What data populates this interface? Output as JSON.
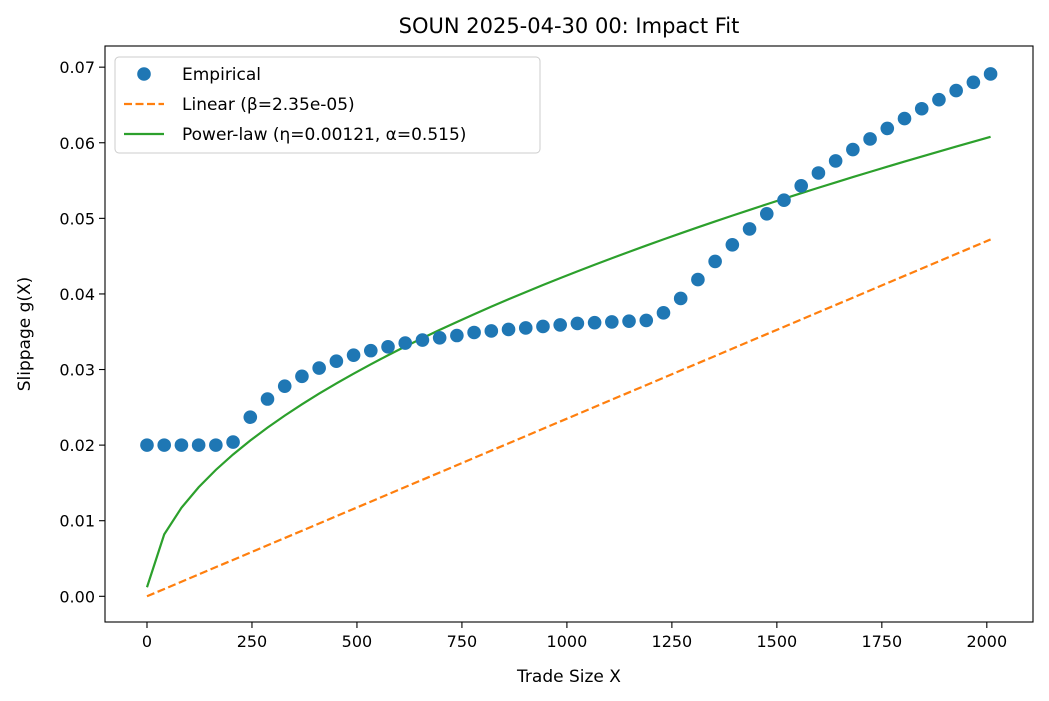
{
  "chart_data": {
    "type": "line",
    "title": "SOUN 2025-04-30 00: Impact Fit",
    "xlabel": "Trade Size X",
    "ylabel": "Slippage g(X)",
    "xlim": [
      -100,
      2110
    ],
    "ylim": [
      -0.0034,
      0.0728
    ],
    "xticks": [
      0,
      250,
      500,
      750,
      1000,
      1250,
      1500,
      1750,
      2000
    ],
    "xtick_labels": [
      "0",
      "250",
      "500",
      "750",
      "1000",
      "1250",
      "1500",
      "1750",
      "2000"
    ],
    "yticks": [
      0.0,
      0.01,
      0.02,
      0.03,
      0.04,
      0.05,
      0.06,
      0.07
    ],
    "ytick_labels": [
      "0.00",
      "0.01",
      "0.02",
      "0.03",
      "0.04",
      "0.05",
      "0.06",
      "0.07"
    ],
    "grid": false,
    "legend_position": "upper-left",
    "series": [
      {
        "name": "Empirical",
        "style": "markers",
        "color": "#1f77b4",
        "x": [
          0,
          41,
          82,
          123,
          164,
          205,
          246,
          287,
          328,
          369,
          410,
          451,
          492,
          533,
          574,
          615,
          656,
          697,
          738,
          779,
          820,
          861,
          902,
          943,
          984,
          1025,
          1066,
          1107,
          1148,
          1189,
          1230,
          1271,
          1312,
          1353,
          1394,
          1435,
          1476,
          1517,
          1558,
          1599,
          1640,
          1681,
          1722,
          1763,
          1804,
          1845,
          1886,
          1927,
          1968,
          2009
        ],
        "y": [
          0.02,
          0.02,
          0.02,
          0.02,
          0.02,
          0.0204,
          0.0237,
          0.0261,
          0.0278,
          0.0291,
          0.0302,
          0.0311,
          0.0319,
          0.0325,
          0.033,
          0.0335,
          0.0339,
          0.0342,
          0.0345,
          0.0349,
          0.0351,
          0.0353,
          0.0355,
          0.0357,
          0.0359,
          0.0361,
          0.0362,
          0.0363,
          0.0364,
          0.0365,
          0.0375,
          0.0394,
          0.0419,
          0.0443,
          0.0465,
          0.0486,
          0.0506,
          0.0524,
          0.0543,
          0.056,
          0.0576,
          0.0591,
          0.0605,
          0.0619,
          0.0632,
          0.0645,
          0.0657,
          0.0669,
          0.068,
          0.0691
        ]
      },
      {
        "name": "Linear (β=2.35e-05)",
        "style": "dashed",
        "color": "#ff7f0e",
        "function": "linear",
        "beta": 2.35e-05,
        "xrange": [
          0,
          2009
        ]
      },
      {
        "name": "Power-law (η=0.00121, α=0.515)",
        "style": "solid",
        "color": "#2ca02c",
        "function": "power",
        "eta": 0.00121,
        "alpha": 0.515,
        "xrange": [
          0,
          2009
        ],
        "x0_value": 0.0012
      }
    ]
  }
}
